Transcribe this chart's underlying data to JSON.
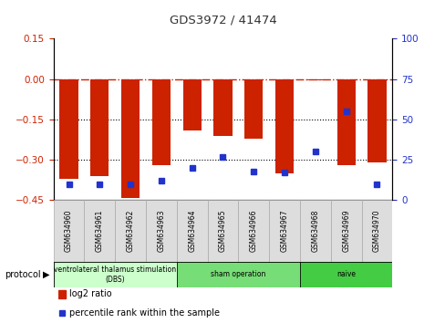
{
  "title": "GDS3972 / 41474",
  "samples": [
    "GSM634960",
    "GSM634961",
    "GSM634962",
    "GSM634963",
    "GSM634964",
    "GSM634965",
    "GSM634966",
    "GSM634967",
    "GSM634968",
    "GSM634969",
    "GSM634970"
  ],
  "log2_ratio": [
    -0.37,
    -0.36,
    -0.44,
    -0.32,
    -0.19,
    -0.21,
    -0.22,
    -0.35,
    -0.005,
    -0.32,
    -0.31
  ],
  "percentile_rank": [
    10,
    10,
    10,
    12,
    20,
    27,
    18,
    17,
    30,
    55,
    10
  ],
  "bar_color": "#cc2200",
  "dot_color": "#2233cc",
  "ylim_left": [
    -0.45,
    0.15
  ],
  "ylim_right": [
    0,
    100
  ],
  "yticks_left": [
    -0.45,
    -0.3,
    -0.15,
    0,
    0.15
  ],
  "yticks_right": [
    0,
    25,
    50,
    75,
    100
  ],
  "groups": [
    {
      "label": "ventrolateral thalamus stimulation\n(DBS)",
      "start": 0,
      "end": 4,
      "color": "#ccffcc"
    },
    {
      "label": "sham operation",
      "start": 4,
      "end": 8,
      "color": "#77dd77"
    },
    {
      "label": "naive",
      "start": 8,
      "end": 11,
      "color": "#44cc44"
    }
  ],
  "legend_bar_label": "log2 ratio",
  "legend_dot_label": "percentile rank within the sample",
  "protocol_label": "protocol",
  "background_color": "#ffffff",
  "grid_color": "#000000",
  "dashed_line_color": "#cc2200",
  "sample_cell_color": "#dddddd"
}
